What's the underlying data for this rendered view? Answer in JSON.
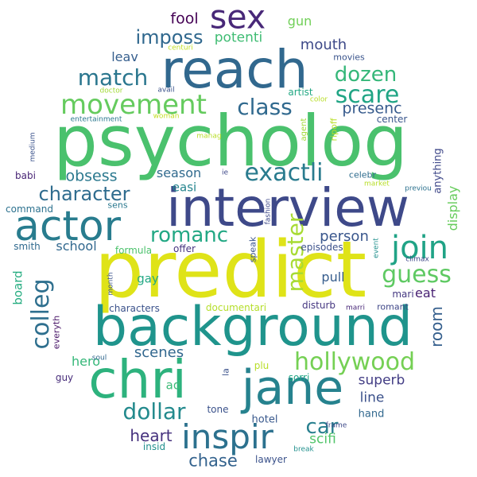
{
  "colors": {
    "background": "#ffffff",
    "palette": [
      "#440154",
      "#472f7d",
      "#3b528b",
      "#2c728e",
      "#21918c",
      "#28ae80",
      "#5ec962",
      "#addc30",
      "#fde725"
    ]
  },
  "words": {
    "predict": "predict",
    "psycholog": "psycholog",
    "background": "background",
    "interview": "interview",
    "reach": "reach",
    "chri": "chri",
    "jane": "jane",
    "actor": "actor",
    "sex": "sex",
    "movement": "movement",
    "join": "join",
    "exactli": "exactli",
    "inspir": "inspir",
    "hollywood": "hollywood",
    "colleg": "colleg",
    "master": "master",
    "guess": "guess",
    "match": "match",
    "class": "class",
    "scare": "scare",
    "dozen": "dozen",
    "romanc": "romanc",
    "dollar": "dollar",
    "character": "character",
    "imposs": "imposs",
    "car": "car",
    "obsess": "obsess",
    "chase": "chase",
    "heart": "heart",
    "person": "person",
    "presenc": "presenc",
    "mouth": "mouth",
    "room": "room",
    "potenti": "potenti",
    "fool": "fool",
    "scenes": "scenes",
    "display": "display",
    "line": "line",
    "superb": "superb",
    "scifi": "scifi",
    "leav": "leav",
    "season": "season",
    "school": "school",
    "pull": "pull",
    "board": "board",
    "easi": "easi",
    "hero": "hero",
    "gay": "gay",
    "gun": "gun",
    "eat": "eat",
    "ad": "ad",
    "anything": "anything",
    "hotel": "hotel",
    "hand": "hand",
    "mari": "mari",
    "formula": "formula",
    "offer": "offer",
    "celebr": "celebr",
    "guy": "guy",
    "center": "center",
    "artist": "artist",
    "babi": "babi",
    "command": "command",
    "smith": "smith",
    "characters": "characters",
    "documentari": "documentari",
    "disturb": "disturb",
    "romant": "romant",
    "episodes": "episodes",
    "lawyer": "lawyer",
    "insid": "insid",
    "tone": "tone",
    "sorri": "sorri",
    "plu": "plu",
    "movies": "movies",
    "sens": "sens",
    "speak": "speak",
    "everyth": "everyth",
    "agent": "agent",
    "ripoff": "ripoff",
    "market": "market",
    "previou": "previou",
    "climax": "climax",
    "la": "la",
    "marri": "marri",
    "month": "month",
    "avail": "avail",
    "doctor": "doctor",
    "entertainment": "entertainment",
    "woman": "woman",
    "manag": "manag",
    "medium": "medium",
    "color": "color",
    "fashion": "fashion",
    "event": "event",
    "ie": "ie",
    "centuri": "centuri",
    "soul": "soul",
    "frame": "frame",
    "break": "break"
  }
}
